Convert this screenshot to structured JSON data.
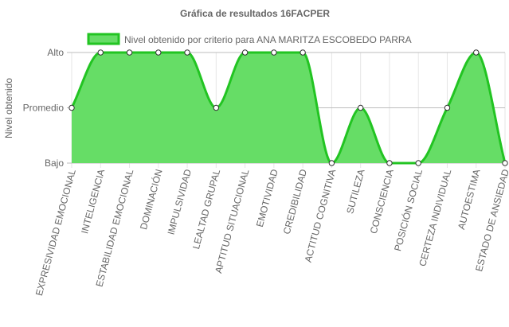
{
  "chart_data": {
    "type": "area",
    "title": "Gráfica de resultados 16FACPER",
    "ylabel": "Nivel obtenido",
    "xlabel": "",
    "legend_position": "top",
    "y_levels": [
      "Bajo",
      "Promedio",
      "Alto"
    ],
    "ylim": [
      0,
      2
    ],
    "categories": [
      "EXPRESIVIDAD EMOCIONAL",
      "INTELIGENCIA",
      "ESTABILIDAD EMOCIONAL",
      "DOMINACIÓN",
      "IMPULSIVIDAD",
      "LEALTAD GRUPAL",
      "APTITUD SITUACIONAL",
      "EMOTIVIDAD",
      "CREDIBILIDAD",
      "ACTITUD COGNITIVA",
      "SUTILEZA",
      "CONSCIENCIA",
      "POSICIÓN SOCIAL",
      "CERTEZA INDIVIDUAL",
      "AUTOESTIMA",
      "ESTADO DE ANSIEDAD"
    ],
    "series": [
      {
        "name": "Nivel obtenido por criterio para ANA MARITZA ESCOBEDO PARRA",
        "values": [
          1,
          2,
          2,
          2,
          2,
          1,
          2,
          2,
          2,
          0,
          1,
          0,
          0,
          1,
          2,
          0
        ],
        "line_color": "#22c422",
        "fill_color": "#66dd66"
      }
    ],
    "grid": true
  }
}
